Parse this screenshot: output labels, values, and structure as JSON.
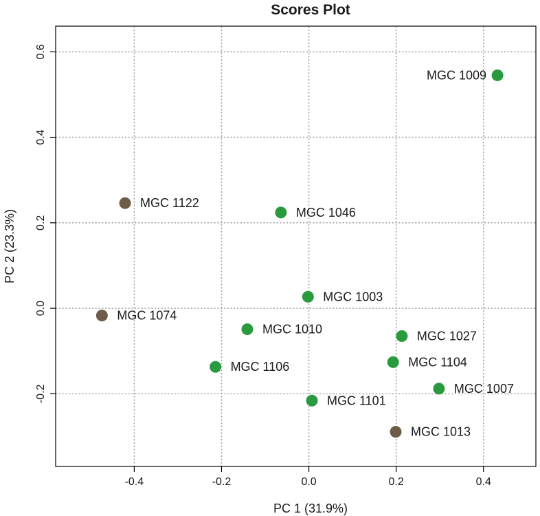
{
  "chart_data": {
    "type": "scatter",
    "title": "Scores Plot",
    "xlabel": "PC 1 (31.9%)",
    "ylabel": "PC 2 (23.3%)",
    "xlim": [
      -0.58,
      0.52
    ],
    "ylim": [
      -0.37,
      0.66
    ],
    "xticks": [
      -0.4,
      -0.2,
      0.0,
      0.2,
      0.4
    ],
    "xtick_labels": [
      "-0.4",
      "-0.2",
      "0.0",
      "0.2",
      "0.4"
    ],
    "yticks": [
      -0.2,
      0.0,
      0.2,
      0.4,
      0.6
    ],
    "ytick_labels": [
      "-0.2",
      "0.0",
      "0.2",
      "0.4",
      "0.6"
    ],
    "grid": true,
    "legend": "none",
    "colors": {
      "group_green": "#2a9a3e",
      "group_brown": "#6e5c48"
    },
    "points": [
      {
        "label": "MGC 1009",
        "x": 0.432,
        "y": 0.545,
        "group": "green",
        "label_side": "left"
      },
      {
        "label": "MGC 1122",
        "x": -0.421,
        "y": 0.246,
        "group": "brown",
        "label_side": "right"
      },
      {
        "label": "MGC 1046",
        "x": -0.064,
        "y": 0.224,
        "group": "green",
        "label_side": "right"
      },
      {
        "label": "MGC 1003",
        "x": -0.002,
        "y": 0.027,
        "group": "green",
        "label_side": "right"
      },
      {
        "label": "MGC 1074",
        "x": -0.474,
        "y": -0.017,
        "group": "brown",
        "label_side": "right"
      },
      {
        "label": "MGC 1010",
        "x": -0.141,
        "y": -0.049,
        "group": "green",
        "label_side": "right"
      },
      {
        "label": "MGC 1027",
        "x": 0.213,
        "y": -0.065,
        "group": "green",
        "label_side": "right"
      },
      {
        "label": "MGC 1104",
        "x": 0.193,
        "y": -0.126,
        "group": "green",
        "label_side": "right"
      },
      {
        "label": "MGC 1106",
        "x": -0.214,
        "y": -0.137,
        "group": "green",
        "label_side": "right"
      },
      {
        "label": "MGC 1007",
        "x": 0.298,
        "y": -0.188,
        "group": "green",
        "label_side": "right"
      },
      {
        "label": "MGC 1101",
        "x": 0.007,
        "y": -0.216,
        "group": "green",
        "label_side": "right"
      },
      {
        "label": "MGC 1013",
        "x": 0.199,
        "y": -0.289,
        "group": "brown",
        "label_side": "right"
      }
    ]
  }
}
